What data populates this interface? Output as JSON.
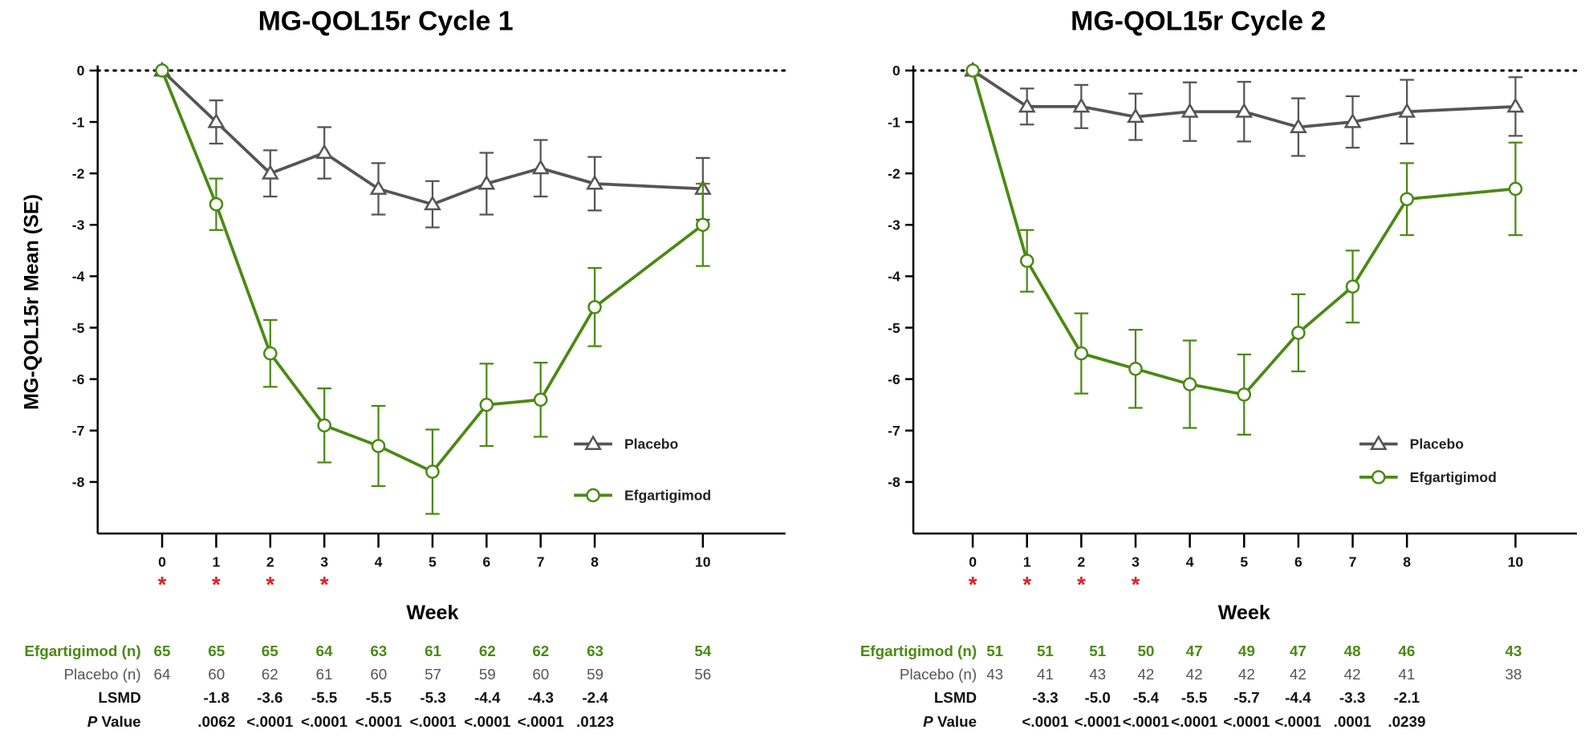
{
  "colors": {
    "placebo": "#555555",
    "efgartigimod": "#4a8a12",
    "significance": "#e02020",
    "axis": "#000000"
  },
  "chart_data": [
    {
      "type": "line",
      "title": "MG-QOL15r Cycle 1",
      "xlabel": "Week",
      "ylabel": "MG-QOL15r Mean (SE)",
      "x": [
        0,
        1,
        2,
        3,
        4,
        5,
        6,
        7,
        8,
        10
      ],
      "xticks": [
        "0",
        "1",
        "2",
        "3",
        "4",
        "5",
        "6",
        "7",
        "8",
        "10"
      ],
      "ylim": [
        -9,
        0
      ],
      "yticks": [
        "0",
        "-1",
        "-2",
        "-3",
        "-4",
        "-5",
        "-6",
        "-7",
        "-8"
      ],
      "reference_line": 0,
      "significant_weeks": [
        0,
        1,
        2,
        3
      ],
      "legend_placement": "lower-right",
      "series": [
        {
          "name": "Placebo",
          "marker": "triangle",
          "values": [
            0,
            -1.0,
            -2.0,
            -1.6,
            -2.3,
            -2.6,
            -2.2,
            -1.9,
            -2.2,
            -2.3
          ],
          "se": [
            0,
            0.42,
            0.45,
            0.5,
            0.5,
            0.45,
            0.6,
            0.55,
            0.52,
            0.6
          ]
        },
        {
          "name": "Efgartigimod",
          "marker": "circle",
          "values": [
            0,
            -2.6,
            -5.5,
            -6.9,
            -7.3,
            -7.8,
            -6.5,
            -6.4,
            -4.6,
            -3.0
          ],
          "se": [
            0,
            0.5,
            0.65,
            0.72,
            0.78,
            0.82,
            0.8,
            0.72,
            0.76,
            0.8
          ]
        }
      ],
      "table": {
        "rows": [
          {
            "label": "Efgartigimod (n)",
            "values": [
              "65",
              "65",
              "65",
              "64",
              "63",
              "61",
              "62",
              "62",
              "63",
              "54"
            ]
          },
          {
            "label": "Placebo (n)",
            "values": [
              "64",
              "60",
              "62",
              "61",
              "60",
              "57",
              "59",
              "60",
              "59",
              "56"
            ]
          },
          {
            "label": "LSMD",
            "values": [
              "",
              "-1.8",
              "-3.6",
              "-5.5",
              "-5.5",
              "-5.3",
              "-4.4",
              "-4.3",
              "-2.4",
              ""
            ]
          },
          {
            "label_italic": "P",
            "label": " Value",
            "values": [
              "",
              ".0062",
              "<.0001",
              "<.0001",
              "<.0001",
              "<.0001",
              "<.0001",
              "<.0001",
              ".0123",
              ""
            ]
          }
        ]
      }
    },
    {
      "type": "line",
      "title": "MG-QOL15r Cycle 2",
      "xlabel": "Week",
      "ylabel": "",
      "x": [
        0,
        1,
        2,
        3,
        4,
        5,
        6,
        7,
        8,
        10
      ],
      "xticks": [
        "0",
        "1",
        "2",
        "3",
        "4",
        "5",
        "6",
        "7",
        "8",
        "10"
      ],
      "ylim": [
        -9,
        0
      ],
      "yticks": [
        "0",
        "-1",
        "-2",
        "-3",
        "-4",
        "-5",
        "-6",
        "-7",
        "-8"
      ],
      "reference_line": 0,
      "significant_weeks": [
        0,
        1,
        2,
        3
      ],
      "legend_placement": "lower-right",
      "series": [
        {
          "name": "Placebo",
          "marker": "triangle",
          "values": [
            0,
            -0.7,
            -0.7,
            -0.9,
            -0.8,
            -0.8,
            -1.1,
            -1.0,
            -0.8,
            -0.7
          ],
          "se": [
            0,
            0.35,
            0.42,
            0.45,
            0.57,
            0.58,
            0.56,
            0.5,
            0.62,
            0.57
          ]
        },
        {
          "name": "Efgartigimod",
          "marker": "circle",
          "values": [
            0,
            -3.7,
            -5.5,
            -5.8,
            -6.1,
            -6.3,
            -5.1,
            -4.2,
            -2.5,
            -2.3
          ],
          "se": [
            0,
            0.6,
            0.78,
            0.76,
            0.85,
            0.78,
            0.75,
            0.7,
            0.7,
            0.9
          ]
        }
      ],
      "table": {
        "rows": [
          {
            "label": "Efgartigimod (n)",
            "values": [
              "51",
              "51",
              "51",
              "50",
              "47",
              "49",
              "47",
              "48",
              "46",
              "43"
            ]
          },
          {
            "label": "Placebo (n)",
            "values": [
              "43",
              "41",
              "43",
              "42",
              "42",
              "42",
              "42",
              "42",
              "41",
              "38"
            ]
          },
          {
            "label": "LSMD",
            "values": [
              "",
              "-3.3",
              "-5.0",
              "-5.4",
              "-5.5",
              "-5.7",
              "-4.4",
              "-3.3",
              "-2.1",
              ""
            ]
          },
          {
            "label_italic": "P",
            "label": " Value",
            "values": [
              "",
              "<.0001",
              "<.0001",
              "<.0001",
              "<.0001",
              "<.0001",
              "<.0001",
              ".0001",
              ".0239",
              ""
            ]
          }
        ]
      }
    }
  ]
}
